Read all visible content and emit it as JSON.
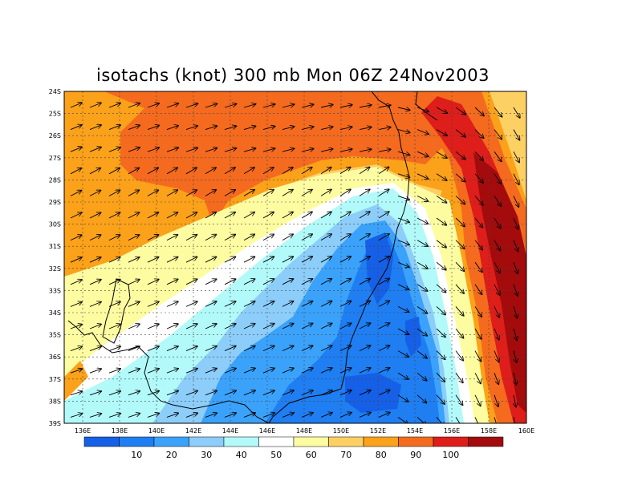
{
  "title": "isotachs (knot) 300 mb Mon 06Z 24Nov2003",
  "map": {
    "lat_labels": [
      "24S",
      "25S",
      "26S",
      "27S",
      "28S",
      "29S",
      "30S",
      "31S",
      "32S",
      "33S",
      "34S",
      "35S",
      "36S",
      "37S",
      "38S",
      "39S"
    ],
    "lon_labels": [
      "136E",
      "138E",
      "140E",
      "142E",
      "144E",
      "146E",
      "148E",
      "150E",
      "152E",
      "154E",
      "156E",
      "158E",
      "160E"
    ],
    "lat_range": [
      -39,
      -24
    ],
    "lon_range": [
      135,
      160
    ],
    "grid": "dashed"
  },
  "colorbar": {
    "colors": [
      "#1560e6",
      "#1e7ef2",
      "#3aa2fb",
      "#8ccdfa",
      "#b2f9fa",
      "#ffffff",
      "#fdfca1",
      "#fdd064",
      "#fba11a",
      "#f46a1f",
      "#dd1e1a",
      "#a30b0c"
    ],
    "labels": [
      "10",
      "20",
      "30",
      "40",
      "50",
      "60",
      "70",
      "80",
      "90",
      "100"
    ]
  }
}
